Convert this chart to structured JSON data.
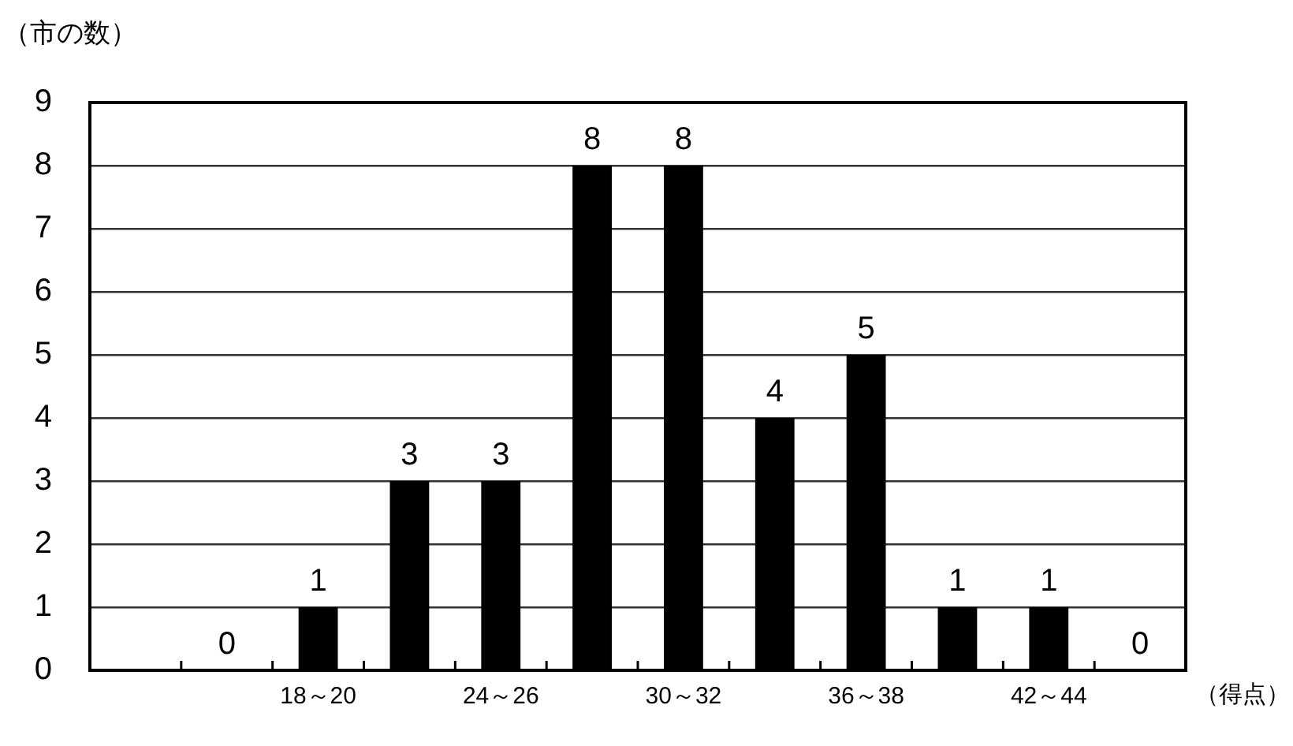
{
  "chart_data": {
    "type": "bar",
    "xlabel": "（得点）",
    "ylabel": "（市の数）",
    "categories": [
      null,
      null,
      "18～20",
      null,
      "24～26",
      null,
      "30～32",
      null,
      "36～38",
      null,
      "42～44",
      null
    ],
    "values": [
      null,
      0,
      1,
      3,
      3,
      8,
      8,
      4,
      5,
      1,
      1,
      0
    ],
    "color": "#000000",
    "ylim": [
      0,
      9
    ],
    "yticks": [
      0,
      1,
      2,
      3,
      4,
      5,
      6,
      7,
      8,
      9
    ],
    "grid": "y",
    "data_labels": true
  }
}
